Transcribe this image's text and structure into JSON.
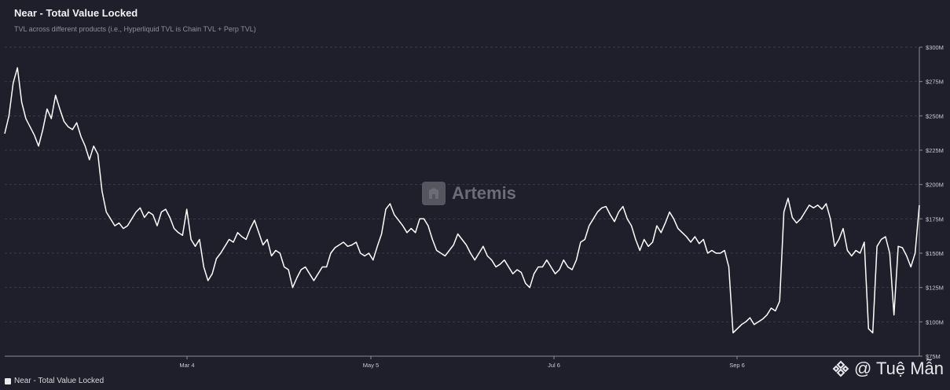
{
  "header": {
    "title": "Near - Total Value Locked",
    "subtitle": "TVL across different products (i.e., Hyperliquid TVL is Chain TVL + Perp TVL)"
  },
  "watermark": {
    "brand": "Artemis"
  },
  "credit": {
    "text": "@ Tuệ Mẫn",
    "icon": "binance-diamond-icon"
  },
  "legend": {
    "label": "Near - Total Value Locked"
  },
  "colors": {
    "background": "#1e1f2b",
    "line": "#ffffff",
    "grid": "#3a3b48"
  },
  "chart_data": {
    "type": "line",
    "title": "Near - Total Value Locked",
    "x_tick_labels": [
      "Mar 4",
      "May 5",
      "Jul 6",
      "Sep 6"
    ],
    "y_tick_labels": [
      "$300M",
      "$275M",
      "$250M",
      "$225M",
      "$200M",
      "$175M",
      "$150M",
      "$125M",
      "$100M",
      "$75M"
    ],
    "ylim": [
      75,
      300
    ],
    "y_unit": "USD millions",
    "grid": "horizontal dashed",
    "legend_position": "bottom-left",
    "series": [
      {
        "name": "Near - Total Value Locked",
        "values": [
          237,
          250,
          274,
          285,
          260,
          248,
          242,
          236,
          228,
          240,
          255,
          248,
          265,
          255,
          246,
          242,
          240,
          245,
          235,
          228,
          218,
          228,
          222,
          195,
          180,
          175,
          170,
          172,
          168,
          170,
          175,
          180,
          183,
          176,
          180,
          178,
          170,
          180,
          182,
          176,
          168,
          165,
          163,
          182,
          160,
          155,
          160,
          140,
          130,
          135,
          146,
          150,
          155,
          160,
          158,
          165,
          162,
          160,
          168,
          174,
          165,
          156,
          160,
          148,
          152,
          150,
          140,
          138,
          125,
          132,
          138,
          140,
          135,
          130,
          135,
          140,
          140,
          150,
          154,
          156,
          158,
          155,
          156,
          158,
          150,
          148,
          150,
          145,
          155,
          164,
          182,
          186,
          178,
          174,
          170,
          165,
          168,
          165,
          175,
          175,
          170,
          160,
          152,
          150,
          148,
          152,
          156,
          164,
          160,
          156,
          150,
          145,
          150,
          155,
          148,
          145,
          140,
          142,
          145,
          140,
          135,
          138,
          136,
          128,
          125,
          135,
          140,
          140,
          145,
          140,
          135,
          138,
          145,
          140,
          138,
          145,
          158,
          160,
          170,
          175,
          180,
          183,
          184,
          178,
          173,
          180,
          184,
          175,
          170,
          160,
          152,
          160,
          155,
          158,
          170,
          165,
          172,
          180,
          175,
          168,
          165,
          162,
          158,
          162,
          157,
          160,
          150,
          152,
          150,
          150,
          152,
          140,
          92,
          95,
          98,
          100,
          103,
          98,
          100,
          102,
          105,
          110,
          108,
          115,
          180,
          190,
          176,
          172,
          175,
          180,
          185,
          183,
          185,
          182,
          186,
          175,
          155,
          160,
          168,
          152,
          148,
          152,
          150,
          158,
          95,
          92,
          155,
          160,
          162,
          150,
          105,
          155,
          154,
          148,
          140,
          150,
          185
        ]
      }
    ]
  }
}
